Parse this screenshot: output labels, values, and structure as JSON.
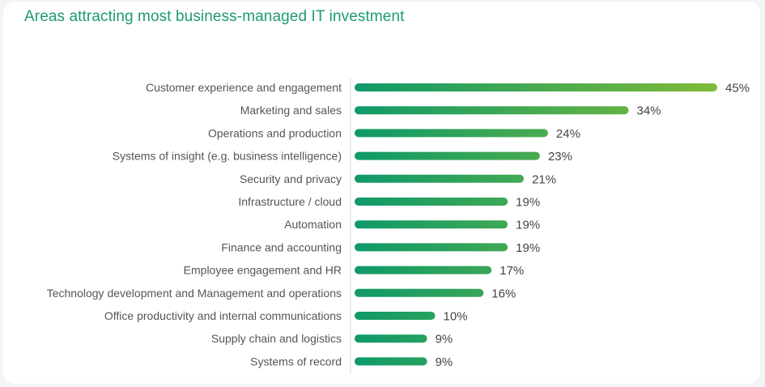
{
  "chart_data": {
    "type": "bar",
    "orientation": "horizontal",
    "title": "Areas attracting most business-managed IT investment",
    "categories": [
      "Customer experience and engagement",
      "Marketing and sales",
      "Operations and production",
      "Systems of insight (e.g. business intelligence)",
      "Security and privacy",
      "Infrastructure / cloud",
      "Automation",
      "Finance and accounting",
      "Employee engagement and HR",
      "Technology development and Management and operations",
      "Office productivity and internal communications",
      "Supply chain and logistics",
      "Systems of record"
    ],
    "values": [
      45,
      34,
      24,
      23,
      21,
      19,
      19,
      19,
      17,
      16,
      10,
      9,
      9
    ],
    "value_labels": [
      "45%",
      "34%",
      "24%",
      "23%",
      "21%",
      "19%",
      "19%",
      "19%",
      "17%",
      "16%",
      "10%",
      "9%",
      "9%"
    ],
    "unit": "%",
    "xlim": [
      0,
      45
    ],
    "grid": false,
    "legend": "none",
    "colors": {
      "title": "#1d9b6a",
      "bar_start": "#0f9a69",
      "bar_end": "#7fba38",
      "axis": "#d9d9d9"
    }
  }
}
